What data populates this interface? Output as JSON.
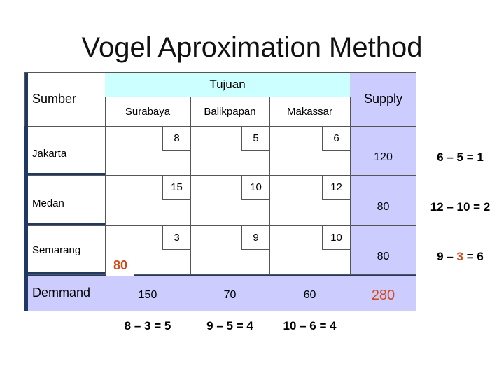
{
  "title": "Vogel Aproximation Method",
  "header": {
    "source": "Sumber",
    "destination": "Tujuan",
    "supply": "Supply",
    "destinations": [
      "Surabaya",
      "Balikpapan",
      "Makassar"
    ]
  },
  "rows": [
    {
      "source": "Jakarta",
      "costs": [
        8,
        5,
        6
      ],
      "supply": 120,
      "penalty": [
        "6 – 5 = 1"
      ]
    },
    {
      "source": "Medan",
      "costs": [
        15,
        10,
        12
      ],
      "supply": 80,
      "penalty": [
        "12 – 10 = 2"
      ]
    },
    {
      "source": "Semarang",
      "costs": [
        3,
        9,
        10
      ],
      "supply": 80,
      "penalty": [
        "9 – ",
        "3",
        " = 6"
      ],
      "allocation": 80
    }
  ],
  "demand": {
    "label": "Demmand",
    "values": [
      150,
      70,
      60
    ],
    "total": 280
  },
  "column_penalties": [
    "8 – 3 = 5",
    "9 – 5 = 4",
    "10 – 6 = 4"
  ]
}
